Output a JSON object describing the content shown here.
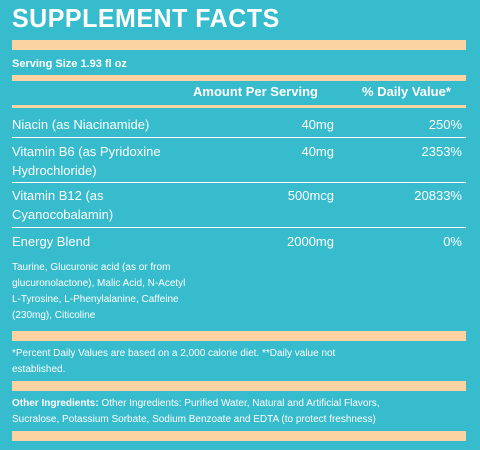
{
  "title": "SUPPLEMENT FACTS",
  "serving_size": "Serving Size 1.93 fl oz",
  "headers": {
    "amount": "Amount Per Serving",
    "daily_value": "% Daily Value*"
  },
  "nutrients": [
    {
      "name_line1": "Niacin (as Niacinamide)",
      "name_line2": "",
      "amount": "40mg",
      "dv": "250%"
    },
    {
      "name_line1": "Vitamin B6 (as Pyridoxine",
      "name_line2": "Hydrochloride)",
      "amount": "40mg",
      "dv": "2353%"
    },
    {
      "name_line1": "Vitamin B12 (as",
      "name_line2": "Cyanocobalamin)",
      "amount": "500mcg",
      "dv": "20833%"
    },
    {
      "name_line1": "Energy Blend",
      "name_line2": "",
      "amount": "2000mg",
      "dv": "0%"
    }
  ],
  "blend_ingredients": {
    "line1": "Taurine, Glucuronic acid (as or from",
    "line2": "glucuronolactone), Malic Acid, N-Acetyl",
    "line3": "L-Tyrosine, L-Phenylalanine, Caffeine",
    "line4": "(230mg), Citicoline"
  },
  "footnote": {
    "line1": "*Percent Daily Values are based on a 2,000 calorie diet. **Daily value not",
    "line2": "established."
  },
  "other_ingredients": {
    "label": "Other Ingredients:",
    "line1": " Other Ingredients: Purified Water, Natural and Artificial Flavors,",
    "line2": "Sucralose, Potassium Sorbate, Sodium Benzoate and EDTA (to protect freshness)"
  },
  "colors": {
    "background": "#36bccd",
    "accent_bars": "#fbd2a2",
    "text": "#ffffff"
  }
}
